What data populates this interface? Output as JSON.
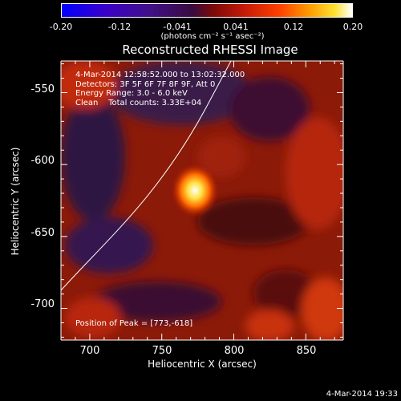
{
  "colorbar": {
    "ticks": [
      "-0.20",
      "-0.12",
      "-0.041",
      "0.041",
      "0.12",
      "0.20"
    ],
    "units": "(photons cm⁻² s⁻¹ asec⁻²)",
    "range": [
      -0.2,
      0.2
    ]
  },
  "title": "Reconstructed RHESSI Image",
  "info": {
    "time_range": "4-Mar-2014 12:58:52.000 to 13:02:32.000",
    "detectors": "Detectors: 3F 5F 6F 7F 8F 9F, Att 0",
    "energy": "Energy Range: 3.0 - 6.0 keV",
    "clean": "Clean    Total counts: 3.33E+04"
  },
  "peak_text": "Position of Peak = [773,-618]",
  "axes": {
    "xlabel": "Heliocentric X (arcsec)",
    "ylabel": "Heliocentric Y (arcsec)",
    "xticks": [
      "700",
      "750",
      "800",
      "850"
    ],
    "yticks": [
      "-550",
      "-600",
      "-650",
      "-700"
    ],
    "xlim": [
      680,
      876
    ],
    "ylim": [
      -722,
      -528
    ]
  },
  "peak": {
    "x": 773,
    "y": -618
  },
  "timestamp": "4-Mar-2014 19:33"
}
